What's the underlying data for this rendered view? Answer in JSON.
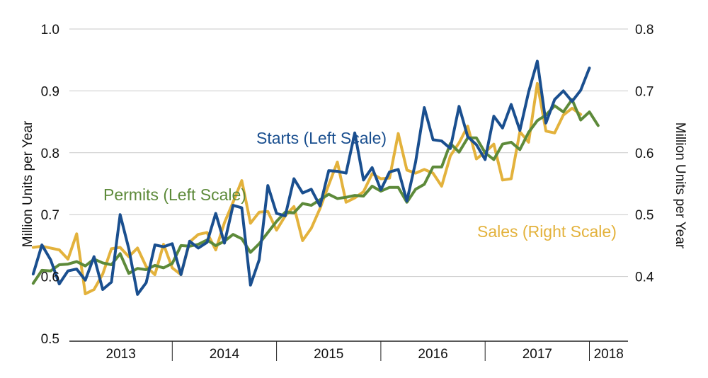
{
  "chart_data": {
    "type": "line",
    "title": "",
    "xlabel": "",
    "ylabel": "Million Units per Year",
    "y2label": "Million Units per Year",
    "ylim": [
      0.5,
      1.0
    ],
    "y2lim": [
      0.3,
      0.8
    ],
    "yticks": [
      "0.5",
      "0.6",
      "0.7",
      "0.8",
      "0.9",
      "1.0"
    ],
    "y2ticks": [
      "0.4",
      "0.5",
      "0.6",
      "0.7",
      "0.8"
    ],
    "xticks": [
      "2013",
      "2014",
      "2015",
      "2016",
      "2017",
      "2018"
    ],
    "grid": true,
    "legend": "inline labels",
    "x_start": "2012-09",
    "series": [
      {
        "name": "Starts (Left Scale)",
        "axis": "left",
        "color": "#1a4f8f",
        "values": [
          0.604,
          0.651,
          0.627,
          0.588,
          0.609,
          0.612,
          0.594,
          0.632,
          0.579,
          0.591,
          0.7,
          0.645,
          0.571,
          0.59,
          0.651,
          0.648,
          0.653,
          0.603,
          0.657,
          0.646,
          0.655,
          0.702,
          0.654,
          0.715,
          0.711,
          0.586,
          0.627,
          0.747,
          0.702,
          0.698,
          0.758,
          0.735,
          0.741,
          0.714,
          0.771,
          0.77,
          0.767,
          0.832,
          0.756,
          0.776,
          0.74,
          0.769,
          0.773,
          0.722,
          0.785,
          0.873,
          0.821,
          0.819,
          0.807,
          0.875,
          0.826,
          0.813,
          0.789,
          0.859,
          0.84,
          0.878,
          0.836,
          0.898,
          0.948,
          0.848,
          0.886,
          0.9,
          0.883,
          0.901,
          0.937
        ]
      },
      {
        "name": "Permits (Left Scale)",
        "axis": "left",
        "color": "#5d8a3a",
        "values": [
          0.589,
          0.61,
          0.609,
          0.619,
          0.62,
          0.624,
          0.617,
          0.628,
          0.622,
          0.619,
          0.637,
          0.605,
          0.613,
          0.611,
          0.618,
          0.614,
          0.621,
          0.65,
          0.649,
          0.652,
          0.659,
          0.65,
          0.657,
          0.668,
          0.661,
          0.639,
          0.653,
          0.671,
          0.689,
          0.704,
          0.703,
          0.718,
          0.715,
          0.724,
          0.733,
          0.726,
          0.728,
          0.731,
          0.73,
          0.746,
          0.738,
          0.744,
          0.744,
          0.72,
          0.741,
          0.749,
          0.777,
          0.777,
          0.815,
          0.801,
          0.824,
          0.824,
          0.8,
          0.789,
          0.814,
          0.817,
          0.805,
          0.833,
          0.852,
          0.861,
          0.876,
          0.866,
          0.886,
          0.853,
          0.866,
          0.844
        ]
      },
      {
        "name": "Sales (Right Scale)",
        "axis": "right",
        "color": "#e3b23c",
        "values": [
          0.447,
          0.449,
          0.446,
          0.443,
          0.428,
          0.469,
          0.372,
          0.379,
          0.404,
          0.445,
          0.447,
          0.432,
          0.446,
          0.416,
          0.403,
          0.452,
          0.414,
          0.403,
          0.456,
          0.468,
          0.471,
          0.443,
          0.487,
          0.52,
          0.555,
          0.486,
          0.504,
          0.505,
          0.475,
          0.498,
          0.513,
          0.458,
          0.478,
          0.51,
          0.548,
          0.585,
          0.52,
          0.527,
          0.537,
          0.566,
          0.558,
          0.559,
          0.631,
          0.572,
          0.567,
          0.573,
          0.567,
          0.546,
          0.595,
          0.616,
          0.643,
          0.59,
          0.601,
          0.614,
          0.556,
          0.558,
          0.634,
          0.617,
          0.712,
          0.635,
          0.632,
          0.661,
          0.672,
          0.662
        ]
      }
    ]
  }
}
